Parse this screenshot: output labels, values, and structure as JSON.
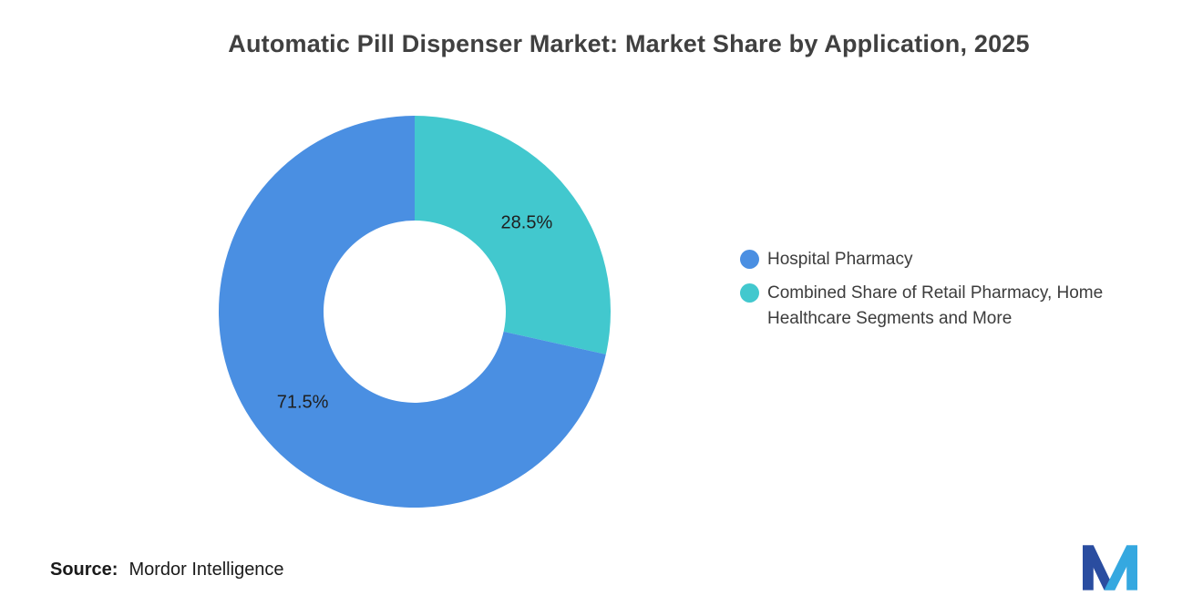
{
  "title": "Automatic Pill Dispenser Market: Market Share by Application, 2025",
  "chart_data": {
    "type": "pie",
    "donut": true,
    "title": "Automatic Pill Dispenser Market: Market Share by Application, 2025",
    "start_angle_deg": 0,
    "direction": "clockwise",
    "slices": [
      {
        "name": "Combined Share of Retail Pharmacy, Home Healthcare Segments and More",
        "value": 28.5,
        "label": "28.5%",
        "color": "#42C8CE"
      },
      {
        "name": "Hospital Pharmacy",
        "value": 71.5,
        "label": "71.5%",
        "color": "#4A8FE2"
      }
    ],
    "legend_position": "right"
  },
  "legend": {
    "items": [
      {
        "label": "Hospital Pharmacy",
        "color": "#4A8FE2"
      },
      {
        "label": "Combined Share of Retail Pharmacy, Home Healthcare Segments and More",
        "color": "#42C8CE"
      }
    ]
  },
  "source": {
    "label": "Source:",
    "value": "Mordor Intelligence"
  },
  "logo": {
    "name": "mordor-intelligence-logo",
    "dark_color": "#2A4DA0",
    "light_color": "#35A8E0"
  }
}
